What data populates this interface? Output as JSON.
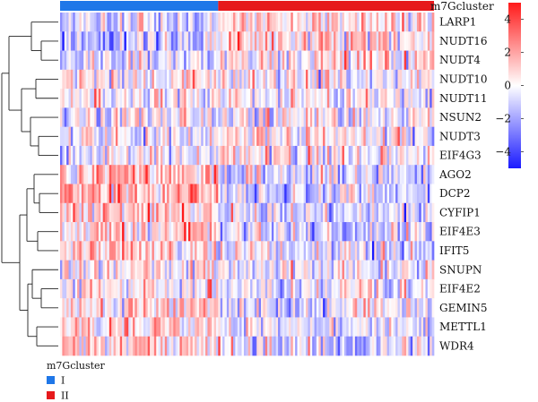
{
  "chart_data": {
    "type": "heatmap",
    "annotation_title": "m7Gcluster",
    "cluster_colors": {
      "I": "#1f77e8",
      "II": "#e6191c"
    },
    "n_samples": {
      "I": 74,
      "II": 101
    },
    "rows": [
      "LARP1",
      "NUDT16",
      "NUDT4",
      "NUDT10",
      "NUDT11",
      "NSUN2",
      "NUDT3",
      "EIF4G3",
      "AGO2",
      "DCP2",
      "CYFIP1",
      "EIF4E3",
      "IFIT5",
      "SNUPN",
      "EIF4E2",
      "GEMIN5",
      "METTL1",
      "WDR4"
    ],
    "row_bias_I": [
      -0.8,
      -1.0,
      -0.6,
      0.2,
      0.0,
      -0.1,
      -0.3,
      -0.4,
      1.4,
      1.2,
      1.0,
      0.8,
      0.9,
      0.3,
      0.4,
      0.6,
      0.6,
      0.8
    ],
    "row_bias_II": [
      0.5,
      0.6,
      0.4,
      -0.2,
      0.0,
      0.1,
      0.2,
      0.3,
      -0.9,
      -0.8,
      -0.7,
      -0.6,
      -0.6,
      -0.2,
      -0.3,
      -0.4,
      -0.4,
      -0.5
    ],
    "color_scale": {
      "min": -5,
      "max": 5,
      "colors": {
        "low": "#1a1aff",
        "mid": "#ffffff",
        "high": "#ff1a1a"
      },
      "ticks": [
        4,
        2,
        0,
        -2,
        -4
      ],
      "tick_labels": [
        "4",
        "2",
        "0",
        "−2",
        "−4"
      ]
    },
    "dendrogram": "hierarchical clustering of rows (left)",
    "legend": {
      "title": "m7Gcluster",
      "entries": [
        {
          "label": "I",
          "color": "#1f77e8"
        },
        {
          "label": "II",
          "color": "#e6191c"
        }
      ],
      "placement": "bottom-left"
    }
  }
}
